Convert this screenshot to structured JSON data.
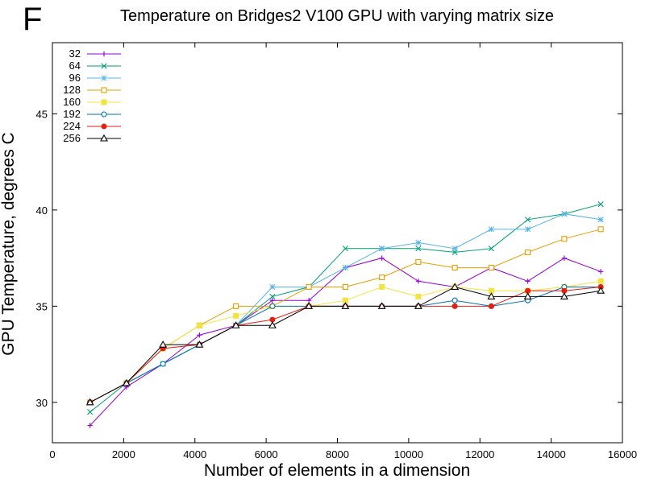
{
  "panel_label": "F",
  "chart_data": {
    "type": "line",
    "title": "Temperature on Bridges2 V100 GPU with varying matrix size",
    "xlabel": "Number of elements in a dimension",
    "ylabel": "GPU Temperature, degrees C",
    "xlim": [
      0,
      16000
    ],
    "ylim": [
      27.9,
      48.7
    ],
    "xticks": [
      0,
      2000,
      4000,
      6000,
      8000,
      10000,
      12000,
      14000,
      16000
    ],
    "yticks": [
      30,
      35,
      40,
      45
    ],
    "grid": false,
    "legend_position": "top-left",
    "x": [
      1056,
      2080,
      3104,
      4128,
      5152,
      6176,
      7200,
      8224,
      9248,
      10272,
      11296,
      12320,
      13344,
      14368,
      15392
    ],
    "series": [
      {
        "name": "32",
        "color": "#9400d3",
        "marker": "plus",
        "values": [
          28.8,
          30.8,
          32.0,
          33.5,
          34.0,
          35.3,
          35.3,
          37.0,
          37.5,
          36.3,
          36.0,
          37.0,
          36.3,
          37.5,
          36.8
        ]
      },
      {
        "name": "64",
        "color": "#009e73",
        "marker": "cross",
        "values": [
          29.5,
          31.0,
          32.0,
          33.0,
          34.0,
          35.5,
          36.0,
          38.0,
          38.0,
          38.0,
          37.8,
          38.0,
          39.5,
          39.8,
          40.3
        ]
      },
      {
        "name": "96",
        "color": "#56b4e9",
        "marker": "star",
        "values": [
          30.0,
          31.0,
          32.0,
          33.0,
          34.0,
          36.0,
          36.0,
          37.0,
          38.0,
          38.3,
          38.0,
          39.0,
          39.0,
          39.8,
          39.5
        ]
      },
      {
        "name": "128",
        "color": "#e69f00",
        "marker": "open-square",
        "values": [
          30.0,
          31.0,
          32.8,
          34.0,
          35.0,
          35.0,
          36.0,
          36.0,
          36.5,
          37.3,
          37.0,
          37.0,
          37.8,
          38.5,
          39.0
        ]
      },
      {
        "name": "160",
        "color": "#f0e442",
        "marker": "filled-square",
        "values": [
          30.0,
          31.0,
          32.8,
          34.0,
          34.5,
          35.0,
          35.0,
          35.3,
          36.0,
          35.5,
          36.0,
          35.8,
          35.8,
          36.0,
          36.3
        ]
      },
      {
        "name": "192",
        "color": "#0072b2",
        "marker": "open-circle",
        "values": [
          30.0,
          31.0,
          32.0,
          33.0,
          34.0,
          35.0,
          35.0,
          35.0,
          35.0,
          35.0,
          35.3,
          35.0,
          35.3,
          36.0,
          36.0
        ]
      },
      {
        "name": "224",
        "color": "#e51e10",
        "marker": "filled-circle",
        "values": [
          30.0,
          31.0,
          32.8,
          33.0,
          34.0,
          34.3,
          35.0,
          35.0,
          35.0,
          35.0,
          35.0,
          35.0,
          35.8,
          35.8,
          36.0
        ]
      },
      {
        "name": "256",
        "color": "#000000",
        "marker": "open-triangle",
        "values": [
          30.0,
          31.0,
          33.0,
          33.0,
          34.0,
          34.0,
          35.0,
          35.0,
          35.0,
          35.0,
          36.0,
          35.5,
          35.5,
          35.5,
          35.8
        ]
      }
    ]
  }
}
